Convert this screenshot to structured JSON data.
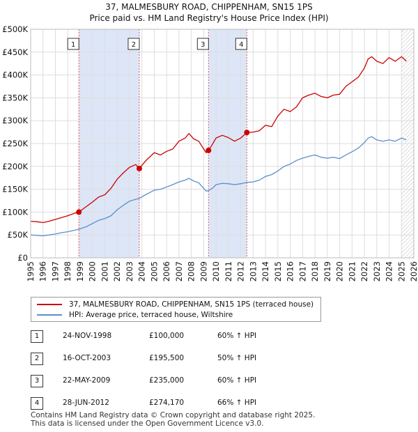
{
  "header": {
    "title_line1": "37, MALMESBURY ROAD, CHIPPENHAM, SN15 1PS",
    "title_line2": "Price paid vs. HM Land Registry's House Price Index (HPI)"
  },
  "colors": {
    "property": "#cc0000",
    "hpi": "#5b8ec9",
    "highlight": "#dde6f7",
    "marker_line": "#e05a5a"
  },
  "chart_data": {
    "type": "line",
    "title": "37, MALMESBURY ROAD, CHIPPENHAM, SN15 1PS",
    "subtitle": "Price paid vs. HM Land Registry's House Price Index (HPI)",
    "xlabel": "",
    "ylabel": "",
    "xlim": [
      1995,
      2026
    ],
    "ylim": [
      0,
      500000
    ],
    "x_ticks": [
      1995,
      1996,
      1997,
      1998,
      1999,
      2000,
      2001,
      2002,
      2003,
      2004,
      2005,
      2006,
      2007,
      2008,
      2009,
      2010,
      2011,
      2012,
      2013,
      2014,
      2015,
      2016,
      2017,
      2018,
      2019,
      2020,
      2021,
      2022,
      2023,
      2024,
      2025,
      2026
    ],
    "y_ticks": [
      {
        "value": 0,
        "label": "£0"
      },
      {
        "value": 50000,
        "label": "£50K"
      },
      {
        "value": 100000,
        "label": "£100K"
      },
      {
        "value": 150000,
        "label": "£150K"
      },
      {
        "value": 200000,
        "label": "£200K"
      },
      {
        "value": 250000,
        "label": "£250K"
      },
      {
        "value": 300000,
        "label": "£300K"
      },
      {
        "value": 350000,
        "label": "£350K"
      },
      {
        "value": 400000,
        "label": "£400K"
      },
      {
        "value": 450000,
        "label": "£450K"
      },
      {
        "value": 500000,
        "label": "£500K"
      }
    ],
    "grid": true,
    "highlight_ranges": [
      [
        1998.9,
        2003.79
      ],
      [
        2009.39,
        2012.49
      ]
    ],
    "future_hatch_start": 2025.0,
    "series": [
      {
        "name": "37, MALMESBURY ROAD, CHIPPENHAM, SN15 1PS (terraced house)",
        "color": "#cc0000",
        "x": [
          1995.0,
          1995.5,
          1996.0,
          1996.5,
          1997.0,
          1997.5,
          1998.0,
          1998.5,
          1998.9,
          1999.5,
          2000.0,
          2000.5,
          2001.0,
          2001.5,
          2002.0,
          2002.5,
          2003.0,
          2003.5,
          2003.79,
          2004.3,
          2005.0,
          2005.5,
          2006.0,
          2006.5,
          2007.0,
          2007.5,
          2007.8,
          2008.2,
          2008.6,
          2009.0,
          2009.2,
          2009.39,
          2009.7,
          2010.0,
          2010.5,
          2011.0,
          2011.5,
          2012.0,
          2012.49,
          2013.0,
          2013.5,
          2014.0,
          2014.5,
          2015.0,
          2015.5,
          2016.0,
          2016.5,
          2017.0,
          2017.5,
          2018.0,
          2018.5,
          2019.0,
          2019.5,
          2020.0,
          2020.5,
          2021.0,
          2021.5,
          2022.0,
          2022.3,
          2022.6,
          2023.0,
          2023.5,
          2024.0,
          2024.5,
          2025.0,
          2025.4
        ],
        "values": [
          80000,
          79000,
          77000,
          80000,
          84000,
          88000,
          92000,
          97000,
          100000,
          112000,
          122000,
          133000,
          138000,
          152000,
          172000,
          186000,
          198000,
          204000,
          195500,
          212000,
          230000,
          225000,
          233000,
          238000,
          255000,
          262000,
          272000,
          260000,
          255000,
          238000,
          230000,
          235000,
          248000,
          262000,
          268000,
          263000,
          255000,
          262000,
          274170,
          275000,
          278000,
          290000,
          287000,
          310000,
          325000,
          320000,
          330000,
          350000,
          356000,
          360000,
          353000,
          350000,
          356000,
          358000,
          375000,
          385000,
          395000,
          415000,
          435000,
          440000,
          430000,
          425000,
          438000,
          430000,
          440000,
          430000
        ]
      },
      {
        "name": "HPI: Average price, terraced house, Wiltshire",
        "color": "#5b8ec9",
        "x": [
          1995.0,
          1995.5,
          1996.0,
          1996.5,
          1997.0,
          1997.5,
          1998.0,
          1998.5,
          1998.9,
          1999.5,
          2000.0,
          2000.5,
          2001.0,
          2001.5,
          2002.0,
          2002.5,
          2003.0,
          2003.5,
          2003.79,
          2004.3,
          2005.0,
          2005.5,
          2006.0,
          2006.5,
          2007.0,
          2007.5,
          2007.8,
          2008.2,
          2008.6,
          2009.0,
          2009.2,
          2009.39,
          2009.7,
          2010.0,
          2010.5,
          2011.0,
          2011.5,
          2012.0,
          2012.49,
          2013.0,
          2013.5,
          2014.0,
          2014.5,
          2015.0,
          2015.5,
          2016.0,
          2016.5,
          2017.0,
          2017.5,
          2018.0,
          2018.5,
          2019.0,
          2019.5,
          2020.0,
          2020.5,
          2021.0,
          2021.5,
          2022.0,
          2022.3,
          2022.6,
          2023.0,
          2023.5,
          2024.0,
          2024.5,
          2025.0,
          2025.4
        ],
        "values": [
          50000,
          49000,
          48000,
          50000,
          52000,
          55000,
          57000,
          60000,
          62500,
          68000,
          75000,
          82000,
          86000,
          92000,
          105000,
          115000,
          124000,
          128000,
          130000,
          138000,
          148000,
          150000,
          155000,
          160000,
          166000,
          170000,
          174000,
          168000,
          164000,
          152000,
          146000,
          147000,
          152000,
          160000,
          163000,
          162000,
          160000,
          162000,
          165000,
          166000,
          170000,
          178000,
          182000,
          190000,
          200000,
          205000,
          213000,
          218000,
          222000,
          225000,
          220000,
          218000,
          220000,
          217000,
          225000,
          232000,
          240000,
          252000,
          262000,
          265000,
          258000,
          255000,
          258000,
          255000,
          262000,
          258000
        ]
      }
    ],
    "sales": [
      {
        "id": "1",
        "x": 1998.9,
        "price": 100000
      },
      {
        "id": "2",
        "x": 2003.79,
        "price": 195500
      },
      {
        "id": "3",
        "x": 2009.39,
        "price": 235000
      },
      {
        "id": "4",
        "x": 2012.49,
        "price": 274170
      }
    ]
  },
  "legend": {
    "property_label": "37, MALMESBURY ROAD, CHIPPENHAM, SN15 1PS (terraced house)",
    "hpi_label": "HPI: Average price, terraced house, Wiltshire"
  },
  "sales_table": [
    {
      "id": "1",
      "date": "24-NOV-1998",
      "price": "£100,000",
      "hpi": "60% ↑ HPI"
    },
    {
      "id": "2",
      "date": "16-OCT-2003",
      "price": "£195,500",
      "hpi": "50% ↑ HPI"
    },
    {
      "id": "3",
      "date": "22-MAY-2009",
      "price": "£235,000",
      "hpi": "60% ↑ HPI"
    },
    {
      "id": "4",
      "date": "28-JUN-2012",
      "price": "£274,170",
      "hpi": "66% ↑ HPI"
    }
  ],
  "footer": {
    "line1": "Contains HM Land Registry data © Crown copyright and database right 2025.",
    "line2": "This data is licensed under the Open Government Licence v3.0."
  }
}
